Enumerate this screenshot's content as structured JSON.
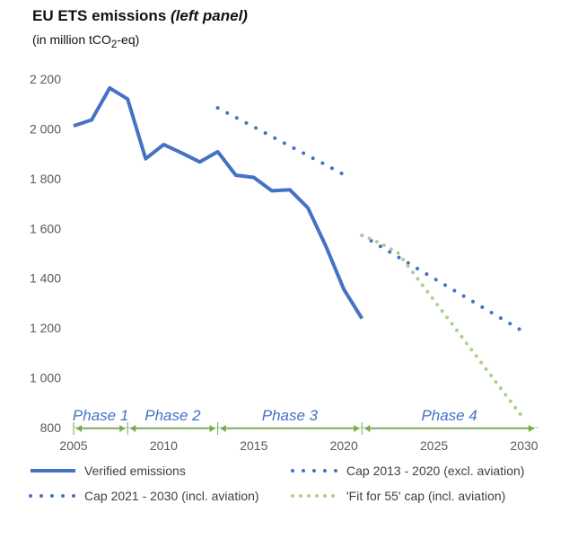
{
  "title": {
    "main": "EU ETS emissions",
    "qualifier": "(left panel)"
  },
  "subtitle": {
    "prefix": "(in million tCO",
    "sub": "2",
    "suffix": "-eq)"
  },
  "colors": {
    "verified": "#4472c4",
    "cap": "#4472c4",
    "fit55": "#a9d18e",
    "phase": "#70ad47",
    "phase_text": "#4472c4",
    "axis_text": "#595959",
    "axis_line": "#bfbfbf"
  },
  "chart_data": {
    "type": "line",
    "xlim": [
      2005,
      2030
    ],
    "ylim": [
      800,
      2200
    ],
    "x_ticks": [
      2005,
      2010,
      2015,
      2020,
      2025,
      2030
    ],
    "x_tick_labels": [
      "2005",
      "2010",
      "2015",
      "2020",
      "2025",
      "2030"
    ],
    "y_ticks": [
      800,
      1000,
      1200,
      1400,
      1600,
      1800,
      2000,
      2200
    ],
    "y_tick_labels": [
      "800",
      "1 000",
      "1 200",
      "1 400",
      "1 600",
      "1 800",
      "2 000",
      "2 200"
    ],
    "grid": false,
    "legend_position": "bottom",
    "series": [
      {
        "name": "Verified emissions",
        "style": "solid",
        "x": [
          2005,
          2006,
          2007,
          2008,
          2009,
          2010,
          2011,
          2012,
          2013,
          2014,
          2015,
          2016,
          2017,
          2018,
          2019,
          2020,
          2021
        ],
        "y": [
          2012,
          2036,
          2164,
          2120,
          1880,
          1937,
          1903,
          1867,
          1908,
          1814,
          1805,
          1751,
          1755,
          1683,
          1529,
          1355,
          1238
        ]
      },
      {
        "name": "Cap 2013 - 2020 (excl. aviation)",
        "style": "dotted",
        "x": [
          2013,
          2014,
          2015,
          2016,
          2017,
          2018,
          2019,
          2020
        ],
        "y": [
          2084,
          2046,
          2008,
          1969,
          1931,
          1893,
          1855,
          1816
        ]
      },
      {
        "name": "Cap 2021 - 2030 (incl. aviation)",
        "style": "dotted",
        "x": [
          2021,
          2022,
          2023,
          2024,
          2025,
          2026,
          2027,
          2028,
          2029,
          2030
        ],
        "y": [
          1572,
          1529,
          1486,
          1442,
          1399,
          1356,
          1313,
          1270,
          1227,
          1184
        ]
      },
      {
        "name": "'Fit for 55' cap (incl. aviation)",
        "style": "dotted",
        "x": [
          2021,
          2022,
          2023,
          2024,
          2025,
          2026,
          2027,
          2028,
          2029,
          2030
        ],
        "y": [
          1572,
          1541,
          1502,
          1407,
          1311,
          1216,
          1120,
          1025,
          929,
          834
        ]
      }
    ],
    "phases": [
      {
        "label": "Phase 1",
        "start": 2005,
        "end": 2008
      },
      {
        "label": "Phase 2",
        "start": 2008,
        "end": 2013
      },
      {
        "label": "Phase 3",
        "start": 2013,
        "end": 2021
      },
      {
        "label": "Phase 4",
        "start": 2021,
        "end": 2031
      }
    ]
  }
}
